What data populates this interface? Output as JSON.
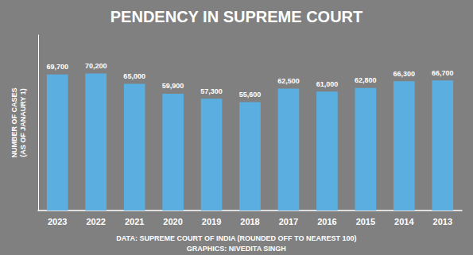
{
  "chart_data": {
    "type": "bar",
    "title": "PENDENCY IN SUPREME COURT",
    "categories": [
      "2023",
      "2022",
      "2021",
      "2020",
      "2019",
      "2018",
      "2017",
      "2016",
      "2015",
      "2014",
      "2013"
    ],
    "values": [
      69700,
      70200,
      65000,
      59900,
      57300,
      55600,
      62500,
      61000,
      62800,
      66300,
      66700
    ],
    "value_labels": [
      "69,700",
      "70,200",
      "65,000",
      "59,900",
      "57,300",
      "55,600",
      "62,500",
      "61,000",
      "62,800",
      "66,300",
      "66,700"
    ],
    "data_labels": true,
    "color": "#5baee0",
    "ylabel": "NUMBER OF CASES\n(AS OF JANAURY 1)",
    "annotations": [
      "DATA: SUPREME COURT OF INDIA (ROUNDED OFF TO NEAREST 100)",
      "GRAPHICS: NIVEDITA SINGH"
    ],
    "ylim": [
      0,
      90000
    ],
    "tick_labels": "x",
    "grid": false
  }
}
